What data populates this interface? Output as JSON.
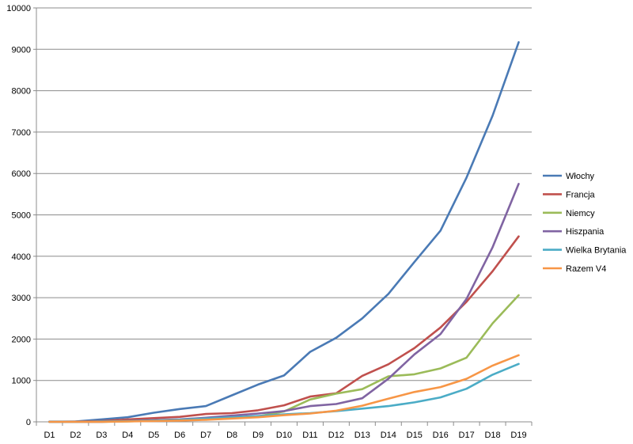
{
  "chart_data": {
    "type": "line",
    "title": "",
    "xlabel": "",
    "ylabel": "",
    "ylim": [
      0,
      10000
    ],
    "yticks": [
      0,
      1000,
      2000,
      3000,
      4000,
      5000,
      6000,
      7000,
      8000,
      9000,
      10000
    ],
    "grid": "horizontal",
    "legend_position": "right",
    "categories": [
      "D1",
      "D2",
      "D3",
      "D4",
      "D5",
      "D6",
      "D7",
      "D8",
      "D9",
      "D10",
      "D11",
      "D12",
      "D13",
      "D14",
      "D15",
      "D16",
      "D17",
      "D18",
      "D19"
    ],
    "series": [
      {
        "name": "Włochy",
        "color": "#4a7ab5",
        "values": [
          5,
          10,
          60,
          110,
          220,
          310,
          380,
          640,
          900,
          1120,
          1690,
          2030,
          2500,
          3090,
          3860,
          4620,
          5900,
          7400,
          9170
        ]
      },
      {
        "name": "Francja",
        "color": "#c0504d",
        "values": [
          2,
          5,
          20,
          60,
          90,
          120,
          190,
          210,
          280,
          400,
          610,
          690,
          1110,
          1390,
          1780,
          2280,
          2900,
          3640,
          4480
        ]
      },
      {
        "name": "Niemcy",
        "color": "#9bbb59",
        "values": [
          0,
          0,
          0,
          10,
          30,
          50,
          80,
          100,
          130,
          250,
          540,
          680,
          790,
          1100,
          1150,
          1290,
          1550,
          2380,
          3060
        ]
      },
      {
        "name": "Hiszpania",
        "color": "#8064a2",
        "values": [
          0,
          0,
          0,
          20,
          40,
          60,
          100,
          150,
          200,
          260,
          380,
          430,
          570,
          1040,
          1630,
          2120,
          2970,
          4220,
          5750
        ]
      },
      {
        "name": "Wielka Brytania",
        "color": "#4bacc6",
        "values": [
          0,
          0,
          10,
          20,
          30,
          50,
          80,
          110,
          140,
          180,
          210,
          260,
          320,
          380,
          470,
          590,
          800,
          1140,
          1400
        ]
      },
      {
        "name": "Razem V4",
        "color": "#f79646",
        "values": [
          0,
          0,
          0,
          10,
          20,
          30,
          50,
          80,
          110,
          160,
          200,
          270,
          390,
          560,
          720,
          840,
          1040,
          1360,
          1610
        ]
      }
    ]
  }
}
